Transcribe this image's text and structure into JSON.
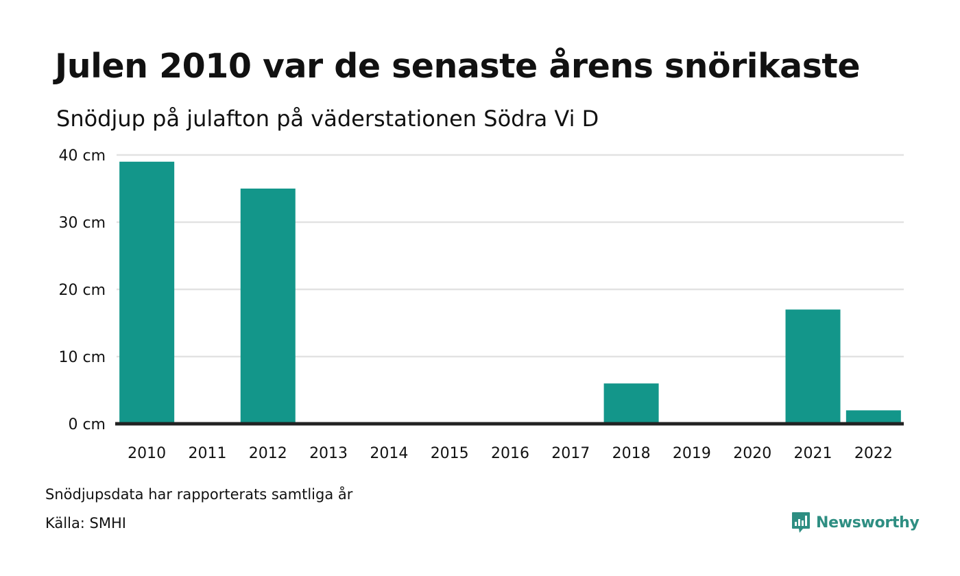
{
  "header": {
    "title": "Julen 2010 var de senaste årens snörikaste",
    "subtitle": "Snödjup på julafton på väderstationen Södra Vi D"
  },
  "footer": {
    "note": "Snödjupsdata har rapporterats samtliga år",
    "source": "Källa: SMHI",
    "brand": "Newsworthy"
  },
  "colors": {
    "bar": "#13968a",
    "grid": "#e2e2e2",
    "axis": "#222222",
    "brand": "#2e8e82"
  },
  "chart_data": {
    "type": "bar",
    "categories": [
      "2010",
      "2011",
      "2012",
      "2013",
      "2014",
      "2015",
      "2016",
      "2017",
      "2018",
      "2019",
      "2020",
      "2021",
      "2022"
    ],
    "values": [
      39,
      0,
      35,
      0,
      0,
      0,
      0,
      0,
      6,
      0,
      0,
      17,
      2
    ],
    "ylim": [
      0,
      40
    ],
    "yticks": [
      0,
      10,
      20,
      30,
      40
    ],
    "ytick_labels": [
      "0 cm",
      "10 cm",
      "20 cm",
      "30 cm",
      "40 cm"
    ],
    "grid": true
  }
}
